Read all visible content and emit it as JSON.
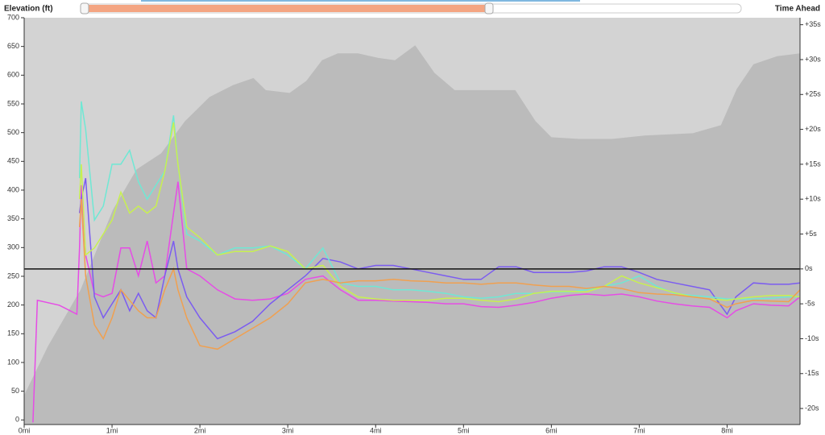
{
  "chart_data": [
    {
      "type": "area",
      "y_label": "Elevation (ft)",
      "color": "#bbbbbb",
      "xlim": [
        0,
        8.83
      ],
      "xticks": [
        {
          "value": 0,
          "label": "0mi"
        },
        {
          "value": 1,
          "label": "1mi"
        },
        {
          "value": 2,
          "label": "2mi"
        },
        {
          "value": 3,
          "label": "3mi"
        },
        {
          "value": 4,
          "label": "4mi"
        },
        {
          "value": 5,
          "label": "5mi"
        },
        {
          "value": 6,
          "label": "6mi"
        },
        {
          "value": 7,
          "label": "7mi"
        },
        {
          "value": 8,
          "label": "8mi"
        }
      ],
      "ylim": [
        -8,
        700
      ],
      "yticks": [
        0,
        50,
        100,
        150,
        200,
        250,
        300,
        350,
        400,
        450,
        500,
        550,
        600,
        650,
        700
      ],
      "x": [
        0,
        0.27,
        0.64,
        1.01,
        1.28,
        1.56,
        1.83,
        2.11,
        2.38,
        2.61,
        2.75,
        3.02,
        3.21,
        3.39,
        3.57,
        3.8,
        4.03,
        4.22,
        4.45,
        4.67,
        4.9,
        5.22,
        5.59,
        5.82,
        6.0,
        6.32,
        6.69,
        7.06,
        7.61,
        7.93,
        8.11,
        8.3,
        8.57,
        8.83
      ],
      "values": [
        43,
        128,
        226,
        366,
        436,
        464,
        520,
        562,
        583,
        595,
        574,
        569,
        590,
        626,
        638,
        638,
        630,
        626,
        652,
        604,
        574,
        574,
        574,
        520,
        492,
        489,
        489,
        495,
        499,
        513,
        576,
        619,
        633,
        638
      ]
    },
    {
      "type": "line",
      "y2_label": "Time Ahead",
      "xlim": [
        0,
        8.83
      ],
      "y2lim": [
        -22.3,
        36
      ],
      "y2ticks": [
        {
          "value": 35,
          "label": "+35s"
        },
        {
          "value": 30,
          "label": "+30s"
        },
        {
          "value": 25,
          "label": "+25s"
        },
        {
          "value": 20,
          "label": "+20s"
        },
        {
          "value": 15,
          "label": "+15s"
        },
        {
          "value": 10,
          "label": "+10s"
        },
        {
          "value": 5,
          "label": "+5s"
        },
        {
          "value": 0,
          "label": "0s"
        },
        {
          "value": -5,
          "label": "-5s"
        },
        {
          "value": -10,
          "label": "-10s"
        },
        {
          "value": -15,
          "label": "-15s"
        },
        {
          "value": -20,
          "label": "-20s"
        }
      ],
      "x": [
        0.1,
        0.15,
        0.4,
        0.6,
        0.63,
        0.65,
        0.7,
        0.8,
        0.9,
        1.0,
        1.1,
        1.2,
        1.3,
        1.4,
        1.5,
        1.6,
        1.7,
        1.75,
        1.85,
        2.0,
        2.2,
        2.4,
        2.6,
        2.8,
        3.0,
        3.2,
        3.4,
        3.6,
        3.8,
        4.0,
        4.2,
        4.4,
        4.6,
        4.8,
        5.0,
        5.2,
        5.4,
        5.6,
        5.8,
        6.0,
        6.2,
        6.4,
        6.6,
        6.8,
        7.0,
        7.2,
        7.4,
        7.6,
        7.8,
        8.0,
        8.1,
        8.3,
        8.5,
        8.7,
        8.83
      ],
      "series": [
        {
          "axis": "y2",
          "color": "#e64ce6",
          "values": [
            -22,
            -4.5,
            -5.2,
            -6.5,
            3,
            12,
            2,
            -3.5,
            -4,
            -3.5,
            3,
            3,
            -1,
            4,
            -2,
            -1,
            8,
            12.5,
            0,
            -1,
            -3,
            -4.3,
            -4.5,
            -4.3,
            -3.5,
            -1.5,
            -1,
            -3,
            -4.5,
            -4.5,
            -4.6,
            -4.7,
            -4.8,
            -5,
            -5,
            -5.4,
            -5.5,
            -5.2,
            -4.8,
            -4.2,
            -3.8,
            -3.6,
            -3.8,
            -3.6,
            -4,
            -4.6,
            -5,
            -5.3,
            -5.5,
            -7,
            -6,
            -5,
            -5.2,
            -5.3,
            -4
          ]
        },
        {
          "axis": "y2",
          "color": "#7b5cf0",
          "values": [
            null,
            null,
            null,
            null,
            8,
            10,
            13,
            -4,
            -7,
            -5,
            -3,
            -6,
            -3.5,
            -6,
            -7,
            -1,
            4,
            0,
            -4,
            -7,
            -10,
            -9,
            -7.5,
            -5,
            -3,
            -1,
            1.5,
            1,
            0,
            0.5,
            0.5,
            0,
            -0.5,
            -1,
            -1.5,
            -1.5,
            0.3,
            0.3,
            -0.5,
            -0.5,
            -0.5,
            -0.3,
            0.3,
            0.3,
            -0.5,
            -1.5,
            -2,
            -2.5,
            -3,
            -6.5,
            -4,
            -2,
            -2.2,
            -2.2,
            -2
          ]
        },
        {
          "axis": "y2",
          "color": "#6fe8d4",
          "values": [
            null,
            null,
            null,
            null,
            13,
            24,
            20,
            7,
            9,
            15,
            15,
            17,
            12.5,
            10,
            12,
            14,
            22,
            15,
            5,
            4,
            2,
            3,
            3,
            3.3,
            2,
            0,
            3,
            -2,
            -2.5,
            -2.5,
            -3,
            -3,
            -3.2,
            -3.5,
            -4,
            -4.2,
            -4,
            -3.5,
            -3.5,
            -3.3,
            -3.3,
            -3,
            -2.5,
            -2,
            -1,
            -2.5,
            -3.5,
            -3.8,
            -4,
            -4.3,
            -4.3,
            -4.3,
            -4.2,
            -4,
            -4
          ]
        },
        {
          "axis": "y2",
          "color": "#c8f050",
          "values": [
            null,
            null,
            null,
            null,
            10,
            15,
            2,
            3,
            5,
            7,
            11,
            8,
            9,
            8,
            9,
            14,
            21,
            15,
            6,
            4.5,
            2,
            2.5,
            2.5,
            3.3,
            2.5,
            0,
            0.5,
            -2.5,
            -4,
            -4.3,
            -4.5,
            -4.5,
            -4.5,
            -4.2,
            -4.2,
            -4.5,
            -4.7,
            -4.3,
            -3.5,
            -3.2,
            -3.2,
            -3.3,
            -2.5,
            -1,
            -2,
            -2.7,
            -3.4,
            -4,
            -4.3,
            -4.5,
            -4.3,
            -4,
            -3.8,
            -3.8,
            -4
          ]
        },
        {
          "axis": "y2",
          "color": "#f0a050",
          "values": [
            null,
            null,
            null,
            null,
            6,
            10,
            -1,
            -8,
            -10,
            -7,
            -3,
            -4.5,
            -6,
            -7,
            -7,
            -3,
            0,
            -3,
            -7,
            -11,
            -11.5,
            -10,
            -8.5,
            -7,
            -5,
            -2,
            -1.5,
            -2,
            -1.7,
            -1.7,
            -1.5,
            -1.7,
            -1.8,
            -2,
            -2,
            -2.2,
            -2,
            -2,
            -2.3,
            -2.5,
            -2.5,
            -2.8,
            -2.5,
            -2.8,
            -3.4,
            -3.6,
            -3.7,
            -4,
            -4.3,
            -5.5,
            -5,
            -4.5,
            -4.6,
            -4.7,
            -3
          ]
        }
      ]
    }
  ]
}
